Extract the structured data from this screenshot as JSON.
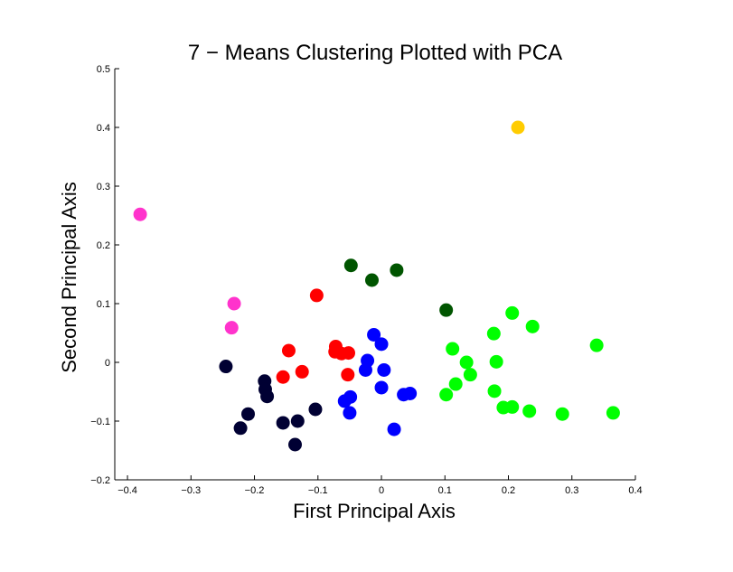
{
  "chart_data": {
    "type": "scatter",
    "title": "7 − Means Clustering Plotted with PCA",
    "xlabel": "First Principal Axis",
    "ylabel": "Second Principal Axis",
    "xlim": [
      -0.42,
      0.4
    ],
    "ylim": [
      -0.2,
      0.5
    ],
    "xticks": [
      -0.4,
      -0.3,
      -0.2,
      -0.1,
      0,
      0.1,
      0.2,
      0.3,
      0.4
    ],
    "xtick_labels": [
      "−0.4",
      "−0.3",
      "−0.2",
      "−0.1",
      "0",
      "0.1",
      "0.2",
      "0.3",
      "0.4"
    ],
    "yticks": [
      -0.2,
      -0.1,
      0,
      0.1,
      0.2,
      0.3,
      0.4,
      0.5
    ],
    "ytick_labels": [
      "−0.2",
      "−0.1",
      "0",
      "0.1",
      "0.2",
      "0.3",
      "0.4",
      "0.5"
    ],
    "grid": false,
    "series": [
      {
        "color": "#ffcc00",
        "points": [
          [
            0.215,
            0.4
          ]
        ]
      },
      {
        "color": "#ff33cc",
        "points": [
          [
            -0.38,
            0.252
          ],
          [
            -0.232,
            0.1
          ],
          [
            -0.236,
            0.059
          ]
        ]
      },
      {
        "color": "#005500",
        "points": [
          [
            -0.048,
            0.165
          ],
          [
            -0.015,
            0.14
          ],
          [
            0.024,
            0.157
          ],
          [
            0.102,
            0.089
          ]
        ]
      },
      {
        "color": "#ff0000",
        "points": [
          [
            -0.102,
            0.114
          ],
          [
            -0.146,
            0.02
          ],
          [
            -0.155,
            -0.025
          ],
          [
            -0.125,
            -0.016
          ],
          [
            -0.072,
            0.027
          ],
          [
            -0.073,
            0.018
          ],
          [
            -0.063,
            0.015
          ],
          [
            -0.052,
            0.016
          ],
          [
            -0.053,
            -0.021
          ]
        ]
      },
      {
        "color": "#0000ff",
        "points": [
          [
            -0.012,
            0.047
          ],
          [
            0.0,
            0.031
          ],
          [
            -0.022,
            0.003
          ],
          [
            -0.025,
            -0.013
          ],
          [
            0.004,
            -0.013
          ],
          [
            -0.058,
            -0.066
          ],
          [
            -0.049,
            -0.059
          ],
          [
            -0.05,
            -0.086
          ],
          [
            0.0,
            -0.043
          ],
          [
            0.035,
            -0.055
          ],
          [
            0.045,
            -0.053
          ],
          [
            0.02,
            -0.114
          ]
        ]
      },
      {
        "color": "#000033",
        "points": [
          [
            -0.245,
            -0.007
          ],
          [
            -0.184,
            -0.032
          ],
          [
            -0.183,
            -0.046
          ],
          [
            -0.18,
            -0.058
          ],
          [
            -0.21,
            -0.088
          ],
          [
            -0.222,
            -0.112
          ],
          [
            -0.155,
            -0.103
          ],
          [
            -0.132,
            -0.1
          ],
          [
            -0.136,
            -0.14
          ],
          [
            -0.104,
            -0.08
          ]
        ]
      },
      {
        "color": "#00ff00",
        "points": [
          [
            0.112,
            0.023
          ],
          [
            0.134,
            0.0
          ],
          [
            0.14,
            -0.021
          ],
          [
            0.117,
            -0.037
          ],
          [
            0.102,
            -0.055
          ],
          [
            0.177,
            0.049
          ],
          [
            0.206,
            0.084
          ],
          [
            0.238,
            0.061
          ],
          [
            0.339,
            0.029
          ],
          [
            0.181,
            0.001
          ],
          [
            0.178,
            -0.049
          ],
          [
            0.192,
            -0.077
          ],
          [
            0.206,
            -0.076
          ],
          [
            0.233,
            -0.083
          ],
          [
            0.285,
            -0.088
          ],
          [
            0.365,
            -0.086
          ]
        ]
      }
    ]
  }
}
